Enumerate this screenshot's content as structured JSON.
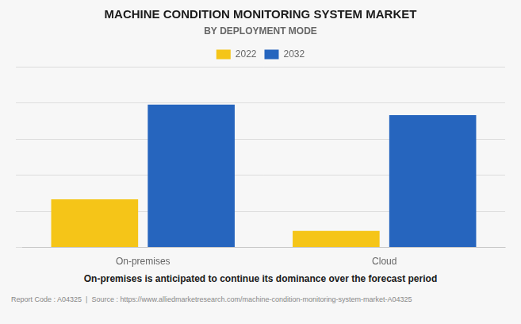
{
  "chart_data": {
    "type": "bar",
    "title": "MACHINE CONDITION MONITORING SYSTEM MARKET",
    "subtitle": "BY DEPLOYMENT MODE",
    "categories": [
      "On-premises",
      "Cloud"
    ],
    "series": [
      {
        "name": "2022",
        "color": "#F5C518",
        "values": [
          3.2,
          1.1
        ]
      },
      {
        "name": "2032",
        "color": "#2665BE",
        "values": [
          9.5,
          8.8
        ]
      }
    ],
    "ylim": [
      0,
      12
    ],
    "yticks": [
      0,
      2.4,
      4.8,
      7.2,
      9.6,
      12
    ],
    "grid": true,
    "legend": "top",
    "tick_labels": "x",
    "annotations": [
      "On-premises is anticipated to continue its dominance over the forecast period",
      "Report Code : A04325  |  Source : https://www.alliedmarketresearch.com/machine-condition-monitoring-system-market-A04325"
    ]
  }
}
